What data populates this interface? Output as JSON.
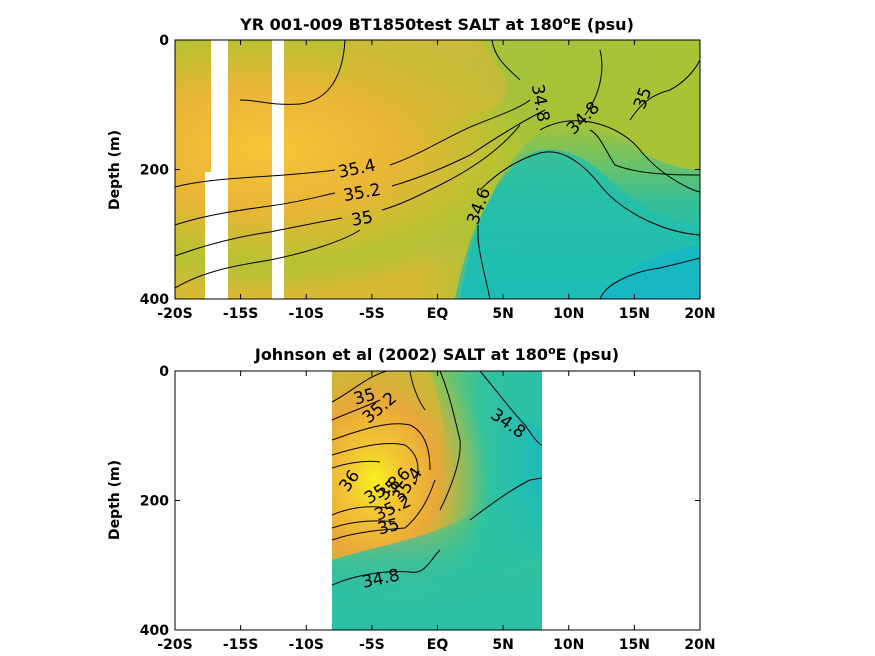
{
  "chart_data": [
    {
      "type": "heatmap",
      "title_main": "YR 001-009 BT1850test SALT at 180",
      "title_sup": "o",
      "title_tail": "E (psu)",
      "ylabel": "Depth (m)",
      "xticks": [
        "-20S",
        "-15S",
        "-10S",
        "-5S",
        "EQ",
        "5N",
        "10N",
        "15N",
        "20N"
      ],
      "yticks": [
        "0",
        "200",
        "400"
      ],
      "xlim": [
        -20,
        20
      ],
      "ylim": [
        0,
        400
      ],
      "contour_levels": [
        34.6,
        34.8,
        35,
        35.2,
        35.4
      ],
      "contour_labels": [
        "35.4",
        "35.2",
        "35",
        "34.6",
        "34.8",
        "34.8",
        "35"
      ],
      "missing_bands_lat": [
        [
          -17.3,
          -15.8
        ],
        [
          -13.0,
          -12.0
        ]
      ]
    },
    {
      "type": "heatmap",
      "title_main": "Johnson et al (2002) SALT at 180",
      "title_sup": "o",
      "title_tail": "E (psu)",
      "ylabel": "Depth (m)",
      "xticks": [
        "-20S",
        "-15S",
        "-10S",
        "-5S",
        "EQ",
        "5N",
        "10N",
        "15N",
        "20N"
      ],
      "yticks": [
        "0",
        "200",
        "400"
      ],
      "xlim": [
        -20,
        20
      ],
      "ylim": [
        0,
        400
      ],
      "data_range_lat": [
        -8,
        8
      ],
      "contour_levels": [
        34.8,
        35,
        35.2,
        35.4,
        35.6,
        35.8,
        36
      ],
      "contour_labels": [
        "35",
        "35.2",
        "34.8",
        "36",
        "35.8",
        "35.6",
        "35.4",
        "35.2",
        "35",
        "34.8"
      ]
    }
  ]
}
